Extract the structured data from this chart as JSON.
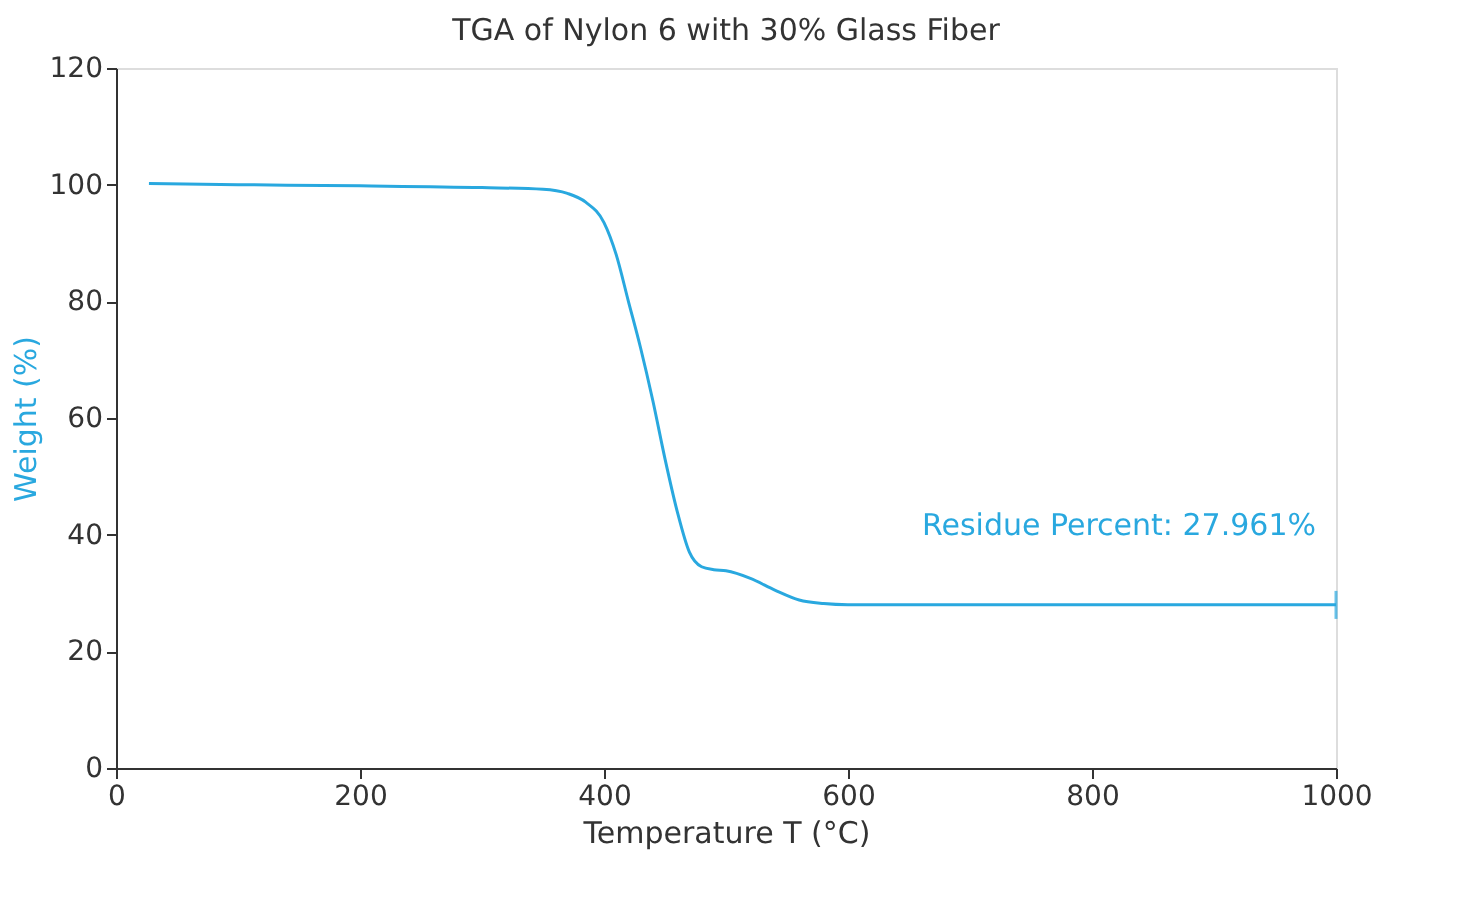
{
  "chart_data": {
    "type": "line",
    "title": "TGA of Nylon 6 with 30% Glass Fiber",
    "xlabel": "Temperature T (°C)",
    "ylabel": "Weight (%)",
    "x": [
      27,
      100,
      200,
      300,
      350,
      370,
      385,
      400,
      410,
      420,
      430,
      440,
      450,
      460,
      470,
      480,
      490,
      500,
      520,
      540,
      560,
      580,
      600,
      700,
      800,
      900,
      1000
    ],
    "series": [
      {
        "color": "#29a8df",
        "values": [
          100.2,
          100,
          99.8,
          99.5,
          99.2,
          98.5,
          97,
          93.5,
          88,
          80,
          72,
          63,
          53,
          44,
          37,
          34.5,
          34,
          33.8,
          32.5,
          30.5,
          28.8,
          28.2,
          28,
          28,
          28,
          28,
          28
        ]
      }
    ],
    "annotations": [
      {
        "text": "Residue Percent: 27.961%",
        "x": 1000,
        "y": 27.961
      }
    ],
    "xlim": [
      0,
      1000
    ],
    "xticks": [
      0,
      200,
      400,
      600,
      800,
      1000
    ],
    "ylim": [
      0,
      120
    ],
    "yticks": [
      0,
      20,
      40,
      60,
      80,
      100,
      120
    ],
    "grid": false
  }
}
